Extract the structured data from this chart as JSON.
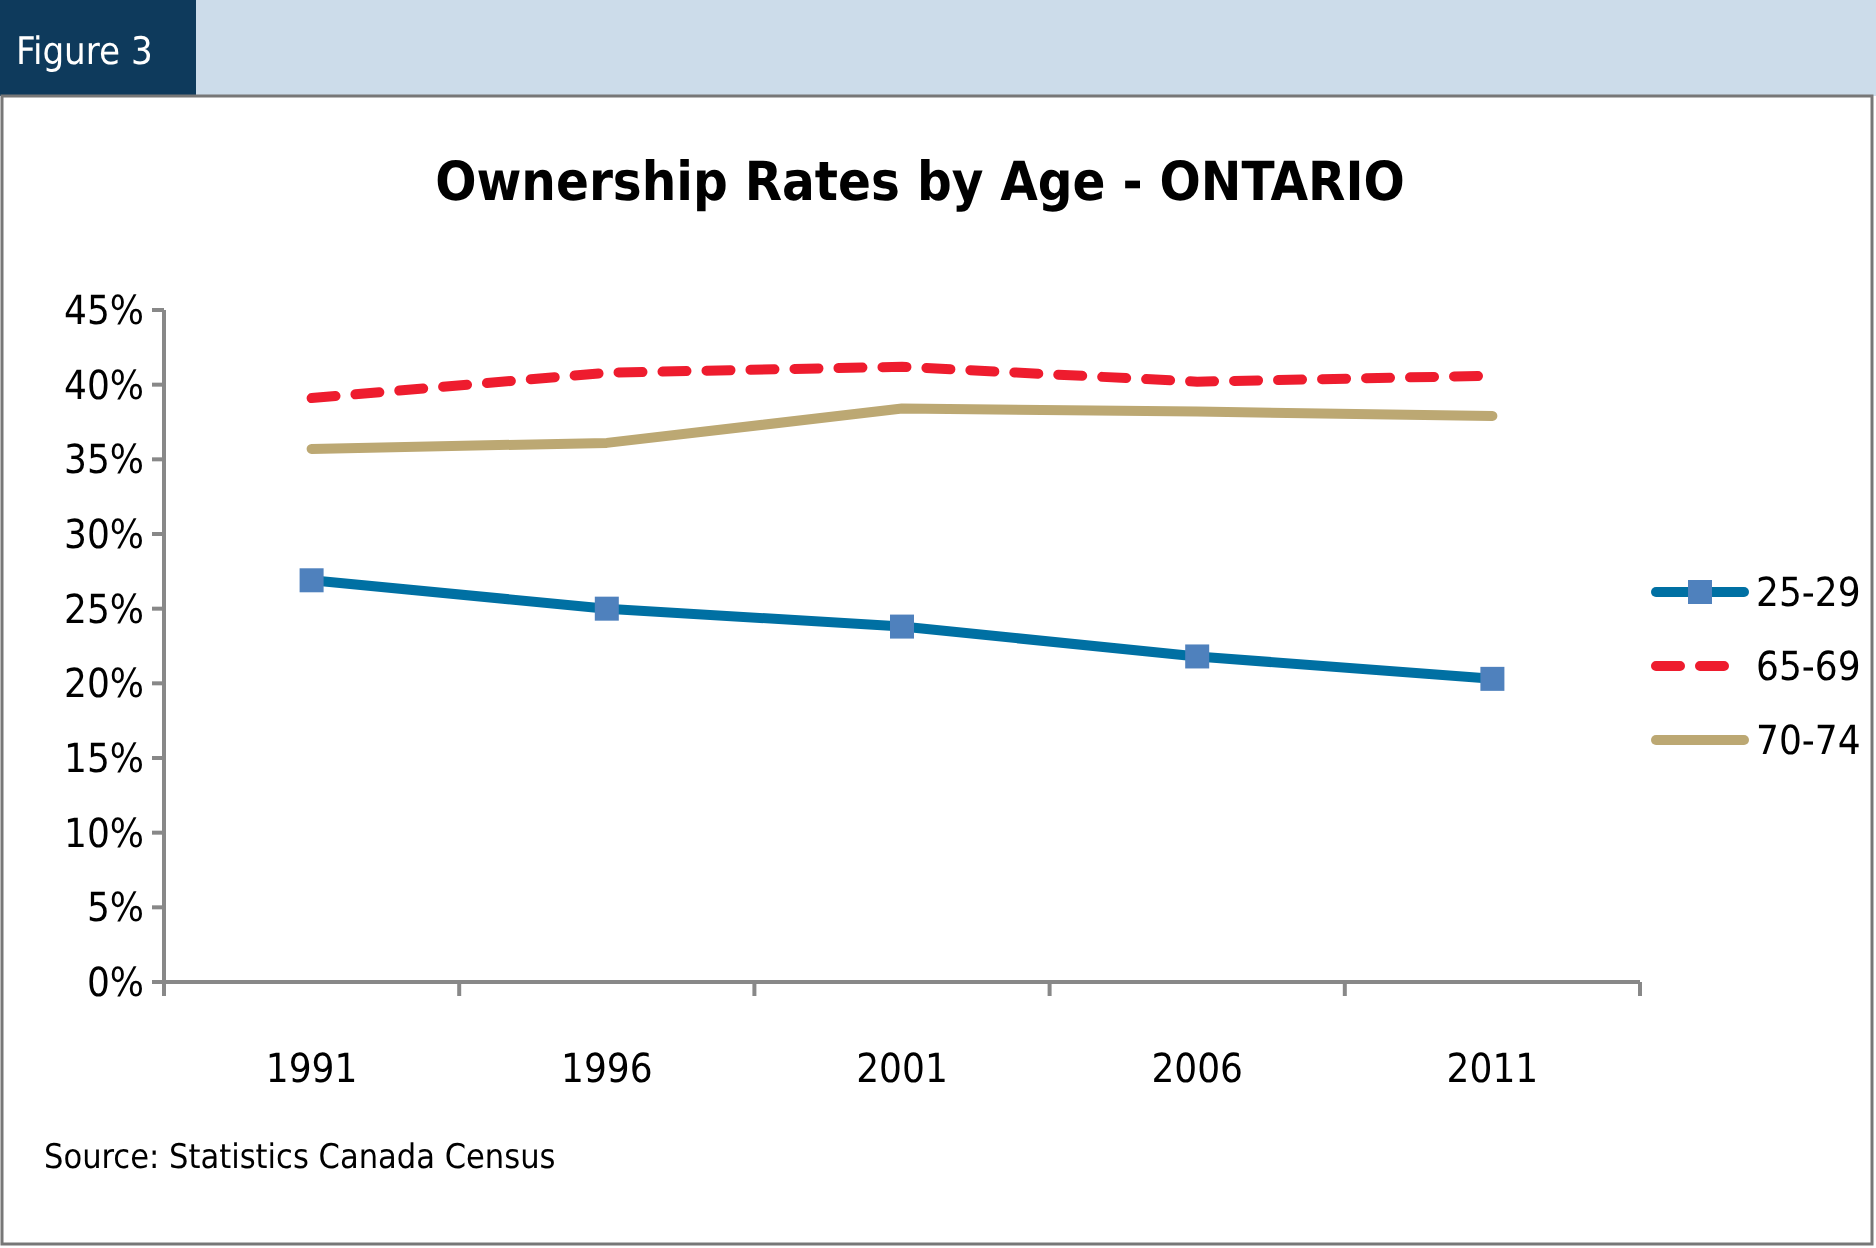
{
  "chart_data": {
    "type": "line",
    "title": "Ownership Rates by Age - ONTARIO",
    "categories": [
      "1991",
      "1996",
      "2001",
      "2006",
      "2011"
    ],
    "series": [
      {
        "name": "25-29",
        "color": "#0070a3",
        "values": [
          26.9,
          25.0,
          23.8,
          21.8,
          20.3
        ],
        "marker": "square",
        "line_style": "solid"
      },
      {
        "name": "65-69",
        "color": "#ee1c2e",
        "values": [
          39.1,
          40.8,
          41.2,
          40.2,
          40.6
        ],
        "marker": "none",
        "line_style": "dashed"
      },
      {
        "name": "70-74",
        "color": "#bca873",
        "values": [
          35.7,
          36.1,
          38.4,
          38.2,
          37.9
        ],
        "marker": "none",
        "line_style": "solid"
      }
    ],
    "ylim": [
      0,
      45
    ],
    "yticks": [
      {
        "value": 0,
        "label": "0%"
      },
      {
        "value": 5,
        "label": "5%"
      },
      {
        "value": 10,
        "label": "10%"
      },
      {
        "value": 15,
        "label": "15%"
      },
      {
        "value": 20,
        "label": "20%"
      },
      {
        "value": 25,
        "label": "25%"
      },
      {
        "value": 30,
        "label": "30%"
      },
      {
        "value": 35,
        "label": "35%"
      },
      {
        "value": 40,
        "label": "40%"
      },
      {
        "value": 45,
        "label": "45%"
      }
    ],
    "grid": false,
    "legend": "right",
    "annotations": [
      "Figure 3",
      "Source: Statistics Canada Census"
    ]
  }
}
